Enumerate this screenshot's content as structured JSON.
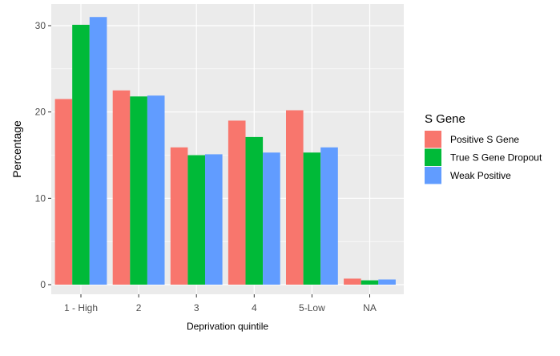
{
  "chart_data": {
    "type": "bar",
    "title": "",
    "xlabel": "Deprivation quintile",
    "ylabel": "Percentage",
    "categories": [
      "1 - High",
      "2",
      "3",
      "4",
      "5-Low",
      "NA"
    ],
    "ylim": [
      0,
      32.5
    ],
    "yticks": [
      0,
      10,
      20,
      30
    ],
    "grid": true,
    "legend": {
      "title": "S Gene",
      "position": "right"
    },
    "series": [
      {
        "name": "Positive S Gene",
        "color": "#F8766D",
        "values": [
          21.5,
          22.5,
          15.9,
          19.0,
          20.2,
          0.7
        ]
      },
      {
        "name": "True S Gene Dropout",
        "color": "#00BA38",
        "values": [
          30.1,
          21.8,
          15.0,
          17.1,
          15.3,
          0.5
        ]
      },
      {
        "name": "Weak Positive",
        "color": "#619CFF",
        "values": [
          31.0,
          21.9,
          15.1,
          15.3,
          15.9,
          0.6
        ]
      }
    ]
  }
}
